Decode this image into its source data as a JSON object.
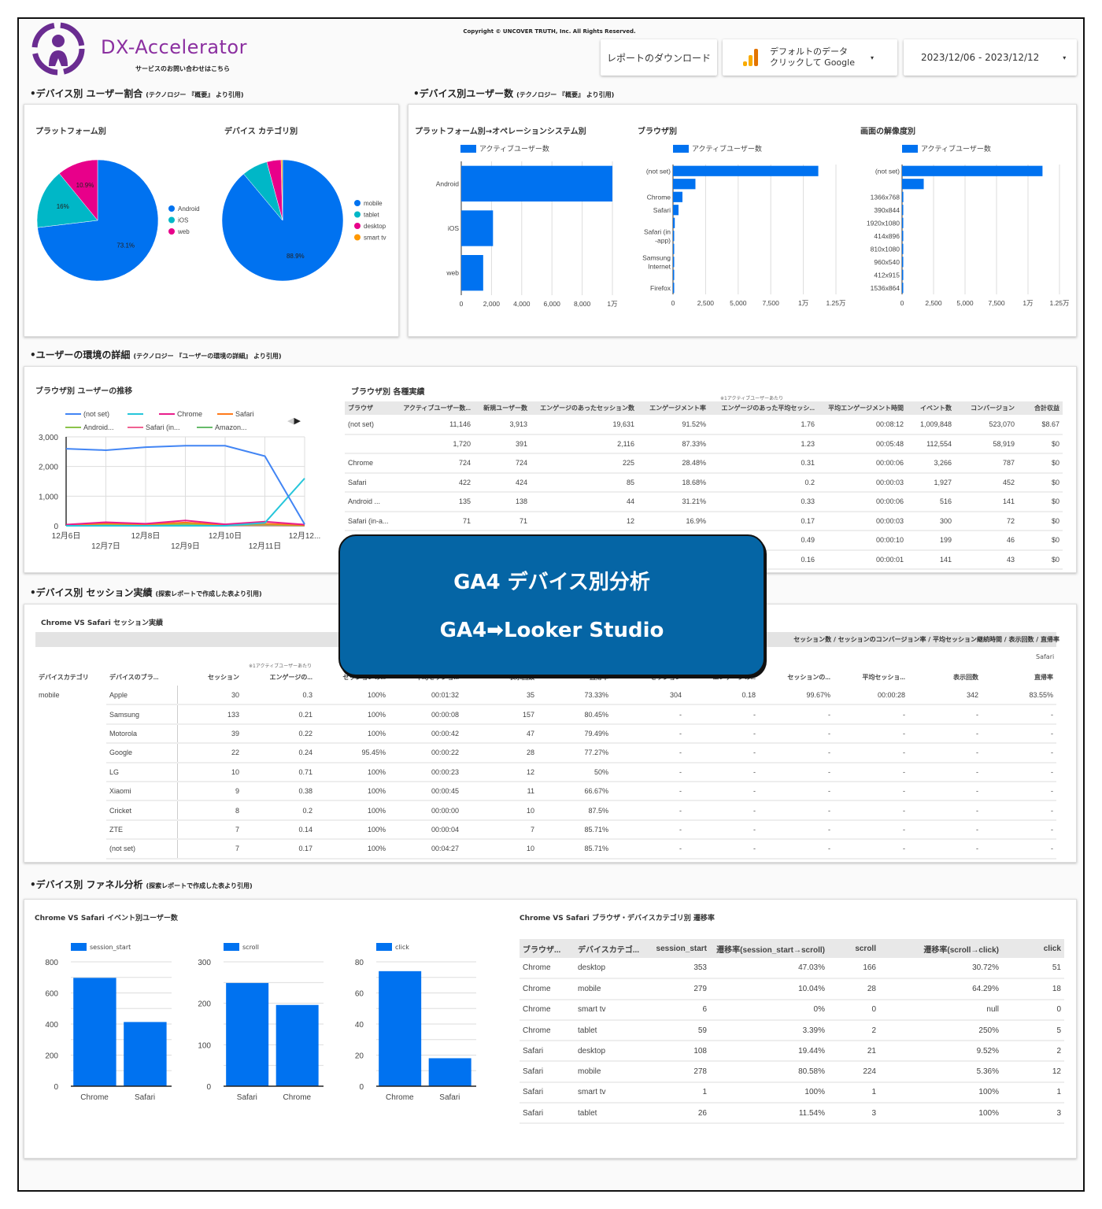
{
  "header": {
    "brand": "DX-Accelerator",
    "contact": "サービスのお問い合わせはこちら",
    "copyright": "Copyright © UNCOVER TRUTH, Inc. All Rights Reserved.",
    "download_label": "レポートのダウンロード",
    "datasource_line1": "デフォルトのデータ",
    "datasource_line2": "クリックして Google",
    "date_range": "2023/12/06 - 2023/12/12"
  },
  "sections": {
    "s1": {
      "title": "•デバイス別 ユーザー割合",
      "note": "(テクノロジー 『概要』 より引用)"
    },
    "s2": {
      "title": "•デバイス別ユーザー数",
      "note": "(テクノロジー 『概要』 より引用)"
    },
    "s3": {
      "title": "•ユーザーの環境の詳細",
      "note": "(テクノロジー 『ユーザーの環境の詳細』 より引用)"
    },
    "s4": {
      "title": "•デバイス別 セッション実績",
      "note": "(探索レポートで作成した表より引用)"
    },
    "s5": {
      "title": "•デバイス別 ファネル分析",
      "note": "(探索レポートで作成した表より引用)"
    }
  },
  "overlay": {
    "line1": "GA4 デバイス別分析",
    "line2": "GA4➡Looker Studio"
  },
  "colors": {
    "blue": "#0072f0",
    "cyan": "#00b7c7",
    "magenta": "#e8008a",
    "orange": "#ff9800",
    "overlay": "#0565a5",
    "brand": "#7a2b8f"
  },
  "chart_data": [
    {
      "id": "pie-platform",
      "type": "pie",
      "title": "プラットフォーム別",
      "labels": [
        "Android",
        "iOS",
        "web"
      ],
      "values": [
        73.1,
        16,
        10.9
      ],
      "value_labels": [
        "73.1%",
        "16%",
        "10.9%"
      ],
      "colors": [
        "#0072f0",
        "#00b7c7",
        "#e8008a"
      ],
      "legend": "right"
    },
    {
      "id": "pie-device",
      "type": "pie",
      "title": "デバイス カテゴリ別",
      "labels": [
        "mobile",
        "tablet",
        "desktop",
        "smart tv"
      ],
      "values": [
        88.9,
        6.9,
        3.8,
        0.4
      ],
      "value_labels": [
        "88.9%",
        "",
        "",
        ""
      ],
      "colors": [
        "#0072f0",
        "#00b7c7",
        "#e8008a",
        "#ff9800"
      ],
      "legend": "right"
    },
    {
      "id": "hbar-os",
      "type": "bar",
      "title": "プラットフォーム別→オペレーションシステム別",
      "legend_label": "アクティブユーザー数",
      "categories": [
        "Android",
        "iOS",
        "web"
      ],
      "values": [
        10000,
        2100,
        1450
      ],
      "xlim": [
        0,
        10000
      ],
      "ticks": [
        0,
        2000,
        4000,
        6000,
        8000,
        10000
      ],
      "tick_labels": [
        "0",
        "2,000",
        "4,000",
        "6,000",
        "8,000",
        "1万"
      ]
    },
    {
      "id": "hbar-browser",
      "type": "bar",
      "title": "ブラウザ別",
      "legend_label": "アクティブユーザー数",
      "categories": [
        "(not set)",
        "",
        "Chrome",
        "Safari",
        "",
        "Safari (in-app)",
        "",
        "Samsung Internet",
        "",
        "Firefox"
      ],
      "values": [
        11146,
        1720,
        724,
        422,
        135,
        71,
        60,
        20,
        10,
        5
      ],
      "xlim": [
        0,
        12500
      ],
      "ticks": [
        0,
        2500,
        5000,
        7500,
        10000,
        12500
      ],
      "tick_labels": [
        "0",
        "2,500",
        "5,000",
        "7,500",
        "1万",
        "1.25万"
      ]
    },
    {
      "id": "hbar-resolution",
      "type": "bar",
      "title": "画面の解像度別",
      "legend_label": "アクティブユーザー数",
      "categories": [
        "(not set)",
        "",
        "1366x768",
        "390x844",
        "1920x1080",
        "414x896",
        "810x1080",
        "960x540",
        "412x915",
        "1536x864"
      ],
      "values": [
        11150,
        1720,
        100,
        60,
        55,
        50,
        45,
        40,
        20,
        15
      ],
      "xlim": [
        0,
        12500
      ],
      "ticks": [
        0,
        2500,
        5000,
        7500,
        10000,
        12500
      ],
      "tick_labels": [
        "0",
        "2,500",
        "5,000",
        "7,500",
        "1万",
        "1.25万"
      ]
    },
    {
      "id": "line-browser",
      "type": "line",
      "title": "ブラウザ別 ユーザーの推移",
      "x": [
        "12月6日",
        "12月7日",
        "12月8日",
        "12月9日",
        "12月10日",
        "12月11日",
        "12月12..."
      ],
      "ylim": [
        0,
        3000
      ],
      "yticks": [
        "0",
        "1,000",
        "2,000",
        "3,000"
      ],
      "series": [
        {
          "name": "(not set)",
          "color": "#4285f4",
          "values": [
            2600,
            2550,
            2650,
            2700,
            2700,
            2350,
            50
          ]
        },
        {
          "name": "",
          "color": "#26c6da",
          "values": [
            0,
            0,
            0,
            0,
            0,
            100,
            1600
          ]
        },
        {
          "name": "Chrome",
          "color": "#e91e8c",
          "values": [
            40,
            120,
            70,
            180,
            50,
            140,
            40
          ]
        },
        {
          "name": "Safari",
          "color": "#ff7a1a",
          "values": [
            20,
            80,
            50,
            110,
            30,
            70,
            20
          ]
        },
        {
          "name": "Android...",
          "color": "#8bc34a",
          "values": [
            10,
            30,
            20,
            60,
            20,
            40,
            10
          ]
        },
        {
          "name": "Safari (in...",
          "color": "#f06292",
          "values": [
            5,
            15,
            10,
            20,
            10,
            15,
            5
          ]
        },
        {
          "name": "Amazon...",
          "color": "#66bb6a",
          "values": [
            2,
            5,
            5,
            8,
            5,
            5,
            2
          ]
        }
      ]
    },
    {
      "id": "vbar-session",
      "type": "bar",
      "legend_label": "session_start",
      "categories": [
        "Chrome",
        "Safari"
      ],
      "values": [
        697,
        413
      ],
      "ylim": [
        0,
        800
      ],
      "yticks": [
        "0",
        "200",
        "400",
        "600",
        "800"
      ]
    },
    {
      "id": "vbar-scroll",
      "type": "bar",
      "legend_label": "scroll",
      "categories": [
        "Safari",
        "Chrome"
      ],
      "values": [
        249,
        196
      ],
      "ylim": [
        0,
        300
      ],
      "yticks": [
        "0",
        "100",
        "200",
        "300"
      ]
    },
    {
      "id": "vbar-click",
      "type": "bar",
      "legend_label": "click",
      "categories": [
        "Chrome",
        "Safari"
      ],
      "values": [
        74,
        18
      ],
      "ylim": [
        0,
        80
      ],
      "yticks": [
        "0",
        "20",
        "40",
        "60",
        "80"
      ]
    }
  ],
  "browser_table": {
    "title": "ブラウザ別 各種実績",
    "note": "※1アクティブユーザーあたり",
    "headers": [
      "ブラウザ",
      "アクティブユーザー数...",
      "新規ユーザー数",
      "エンゲージのあったセッション数",
      "エンゲージメント率",
      "エンゲージのあった平均セッシ...",
      "平均エンゲージメント時間",
      "イベント数",
      "コンバージョン",
      "合計収益"
    ],
    "rows": [
      [
        "(not set)",
        "11,146",
        "3,913",
        "19,631",
        "91.52%",
        "1.76",
        "00:08:12",
        "1,009,848",
        "523,070",
        "$8.67"
      ],
      [
        "",
        "1,720",
        "391",
        "2,116",
        "87.33%",
        "1.23",
        "00:05:48",
        "112,554",
        "58,919",
        "$0"
      ],
      [
        "Chrome",
        "724",
        "724",
        "225",
        "28.48%",
        "0.31",
        "00:00:06",
        "3,266",
        "787",
        "$0"
      ],
      [
        "Safari",
        "422",
        "424",
        "85",
        "18.68%",
        "0.2",
        "00:00:03",
        "1,927",
        "452",
        "$0"
      ],
      [
        "Android ...",
        "135",
        "138",
        "44",
        "31.21%",
        "0.33",
        "00:00:06",
        "516",
        "141",
        "$0"
      ],
      [
        "Safari (in-a...",
        "71",
        "71",
        "12",
        "16.9%",
        "0.17",
        "00:00:03",
        "300",
        "72",
        "$0"
      ],
      [
        "",
        "",
        "",
        "",
        "",
        "0.49",
        "00:00:10",
        "199",
        "46",
        "$0"
      ],
      [
        "",
        "",
        "",
        "",
        "",
        "0.16",
        "00:00:01",
        "141",
        "43",
        "$0"
      ]
    ]
  },
  "session_table": {
    "title": "Chrome VS Safari セッション実績",
    "group_header": "セッション数 / セッションのコンバージョン率 / 平均セッション継続時間 / 表示回数 / 直帰率",
    "group_label": "Safari",
    "note": "※1アクティブユーザーあたり",
    "headers": [
      "デバイスカテゴリ",
      "デバイスのブラ...",
      "セッション",
      "エンゲージの...",
      "セッションの...",
      "平均セッショ...",
      "表示回数",
      "直帰率",
      "セッション",
      "エンゲージの...",
      "セッションの...",
      "平均セッショ...",
      "表示回数",
      "直帰率"
    ],
    "rows": [
      [
        "mobile",
        "Apple",
        "30",
        "0.3",
        "100%",
        "00:01:32",
        "35",
        "73.33%",
        "304",
        "0.18",
        "99.67%",
        "00:00:28",
        "342",
        "83.55%"
      ],
      [
        "",
        "Samsung",
        "133",
        "0.21",
        "100%",
        "00:00:08",
        "157",
        "80.45%",
        "-",
        "-",
        "-",
        "-",
        "-",
        "-"
      ],
      [
        "",
        "Motorola",
        "39",
        "0.22",
        "100%",
        "00:00:42",
        "47",
        "79.49%",
        "-",
        "-",
        "-",
        "-",
        "-",
        "-"
      ],
      [
        "",
        "Google",
        "22",
        "0.24",
        "95.45%",
        "00:00:22",
        "28",
        "77.27%",
        "-",
        "-",
        "-",
        "-",
        "-",
        "-"
      ],
      [
        "",
        "LG",
        "10",
        "0.71",
        "100%",
        "00:00:23",
        "12",
        "50%",
        "-",
        "-",
        "-",
        "-",
        "-",
        "-"
      ],
      [
        "",
        "Xiaomi",
        "9",
        "0.38",
        "100%",
        "00:00:45",
        "11",
        "66.67%",
        "-",
        "-",
        "-",
        "-",
        "-",
        "-"
      ],
      [
        "",
        "Cricket",
        "8",
        "0.2",
        "100%",
        "00:00:00",
        "10",
        "87.5%",
        "-",
        "-",
        "-",
        "-",
        "-",
        "-"
      ],
      [
        "",
        "ZTE",
        "7",
        "0.14",
        "100%",
        "00:00:04",
        "7",
        "85.71%",
        "-",
        "-",
        "-",
        "-",
        "-",
        "-"
      ],
      [
        "",
        "(not set)",
        "7",
        "0.17",
        "100%",
        "00:04:27",
        "10",
        "85.71%",
        "-",
        "-",
        "-",
        "-",
        "-",
        "-"
      ]
    ]
  },
  "funnel": {
    "chart_title": "Chrome VS Safari イベント別ユーザー数",
    "table_title": "Chrome VS Safari ブラウザ・デバイスカテゴリ別 遷移率",
    "headers": [
      "ブラウザ...",
      "デバイスカテゴ...",
      "session_start",
      "遷移率(session_start→scroll)",
      "scroll",
      "遷移率(scroll→click)",
      "click"
    ],
    "rows": [
      [
        "Chrome",
        "desktop",
        "353",
        "47.03%",
        "166",
        "30.72%",
        "51"
      ],
      [
        "Chrome",
        "mobile",
        "279",
        "10.04%",
        "28",
        "64.29%",
        "18"
      ],
      [
        "Chrome",
        "smart tv",
        "6",
        "0%",
        "0",
        "null",
        "0"
      ],
      [
        "Chrome",
        "tablet",
        "59",
        "3.39%",
        "2",
        "250%",
        "5"
      ],
      [
        "Safari",
        "desktop",
        "108",
        "19.44%",
        "21",
        "9.52%",
        "2"
      ],
      [
        "Safari",
        "mobile",
        "278",
        "80.58%",
        "224",
        "5.36%",
        "12"
      ],
      [
        "Safari",
        "smart tv",
        "1",
        "100%",
        "1",
        "100%",
        "1"
      ],
      [
        "Safari",
        "tablet",
        "26",
        "11.54%",
        "3",
        "100%",
        "3"
      ]
    ]
  }
}
